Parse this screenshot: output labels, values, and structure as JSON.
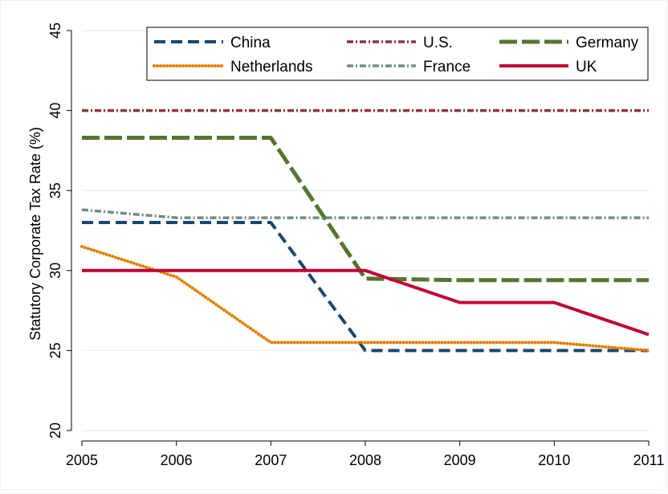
{
  "chart_data": {
    "type": "line",
    "title": "",
    "xlabel": "",
    "ylabel": "Statutory Corporate Tax Rate (%)",
    "x": [
      2005,
      2006,
      2007,
      2008,
      2009,
      2010,
      2011
    ],
    "xlim": [
      2005,
      2011
    ],
    "ylim": [
      20,
      45
    ],
    "yticks": [
      20,
      25,
      30,
      35,
      40,
      45
    ],
    "grid": true,
    "legend": "top",
    "series": [
      {
        "name": "China",
        "color": "#1a476f",
        "dash": "dash",
        "values": [
          33,
          33,
          33,
          25,
          25,
          25,
          25
        ]
      },
      {
        "name": "U.S.",
        "color": "#90353b",
        "dash": "dashdot",
        "values": [
          40,
          40,
          40,
          40,
          40,
          40,
          40
        ]
      },
      {
        "name": "Germany",
        "color": "#55752f",
        "dash": "longdash",
        "values": [
          38.3,
          38.3,
          38.3,
          29.5,
          29.4,
          29.4,
          29.4
        ]
      },
      {
        "name": "Netherlands",
        "color": "#e37e00",
        "dash": "dot",
        "values": [
          31.5,
          29.6,
          25.5,
          25.5,
          25.5,
          25.5,
          25
        ]
      },
      {
        "name": "France",
        "color": "#6e8e84",
        "dash": "dashdot",
        "values": [
          33.8,
          33.3,
          33.3,
          33.3,
          33.3,
          33.3,
          33.3
        ]
      },
      {
        "name": "UK",
        "color": "#c10534",
        "dash": "solid",
        "values": [
          30,
          30,
          30,
          30,
          28,
          28,
          26
        ]
      }
    ]
  }
}
